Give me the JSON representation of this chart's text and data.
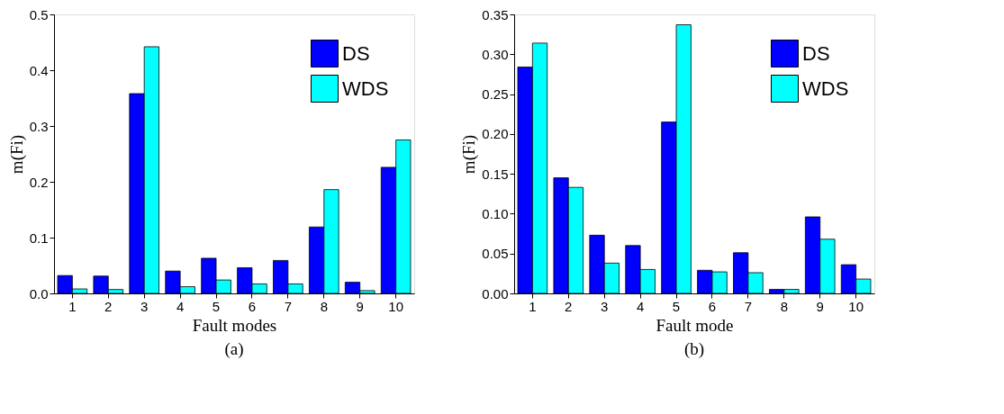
{
  "chart_data": [
    {
      "type": "bar",
      "title": "(a)",
      "xlabel": "Fault modes",
      "ylabel": "m(Fi)",
      "categories": [
        "1",
        "2",
        "3",
        "4",
        "5",
        "6",
        "7",
        "8",
        "9",
        "10"
      ],
      "series": [
        {
          "name": "DS",
          "color": "#0000ff",
          "values": [
            0.032,
            0.031,
            0.358,
            0.04,
            0.063,
            0.046,
            0.059,
            0.119,
            0.02,
            0.226
          ]
        },
        {
          "name": "WDS",
          "color": "#00ffff",
          "values": [
            0.008,
            0.007,
            0.442,
            0.012,
            0.024,
            0.017,
            0.017,
            0.186,
            0.005,
            0.275
          ]
        }
      ],
      "ylim": [
        0,
        0.5
      ],
      "yticks": [
        {
          "value": 0,
          "label": "0.0"
        },
        0.1,
        0.2,
        0.3,
        0.4,
        0.5
      ],
      "grid": false,
      "legend": "top right"
    },
    {
      "type": "bar",
      "title": "(b)",
      "xlabel": "Fault mode",
      "ylabel": "m(Fi)",
      "categories": [
        "1",
        "2",
        "3",
        "4",
        "5",
        "6",
        "7",
        "8",
        "9",
        "10"
      ],
      "series": [
        {
          "name": "DS",
          "color": "#0000ff",
          "values": [
            0.284,
            0.145,
            0.073,
            0.06,
            0.215,
            0.029,
            0.051,
            0.005,
            0.096,
            0.036
          ]
        },
        {
          "name": "WDS",
          "color": "#00ffff",
          "values": [
            0.314,
            0.133,
            0.038,
            0.03,
            0.337,
            0.027,
            0.026,
            0.005,
            0.068,
            0.018
          ]
        }
      ],
      "ylim": [
        0,
        0.35
      ],
      "yticks": [
        {
          "value": 0,
          "label": "0.00"
        },
        {
          "value": 0.05,
          "label": "0.05"
        },
        {
          "value": 0.1,
          "label": "0.10"
        },
        {
          "value": 0.15,
          "label": "0.15"
        },
        {
          "value": 0.2,
          "label": "0.20"
        },
        {
          "value": 0.25,
          "label": "0.25"
        },
        {
          "value": 0.3,
          "label": "0.30"
        },
        {
          "value": 0.35,
          "label": "0.35"
        }
      ],
      "grid": false,
      "legend": "top right"
    }
  ]
}
